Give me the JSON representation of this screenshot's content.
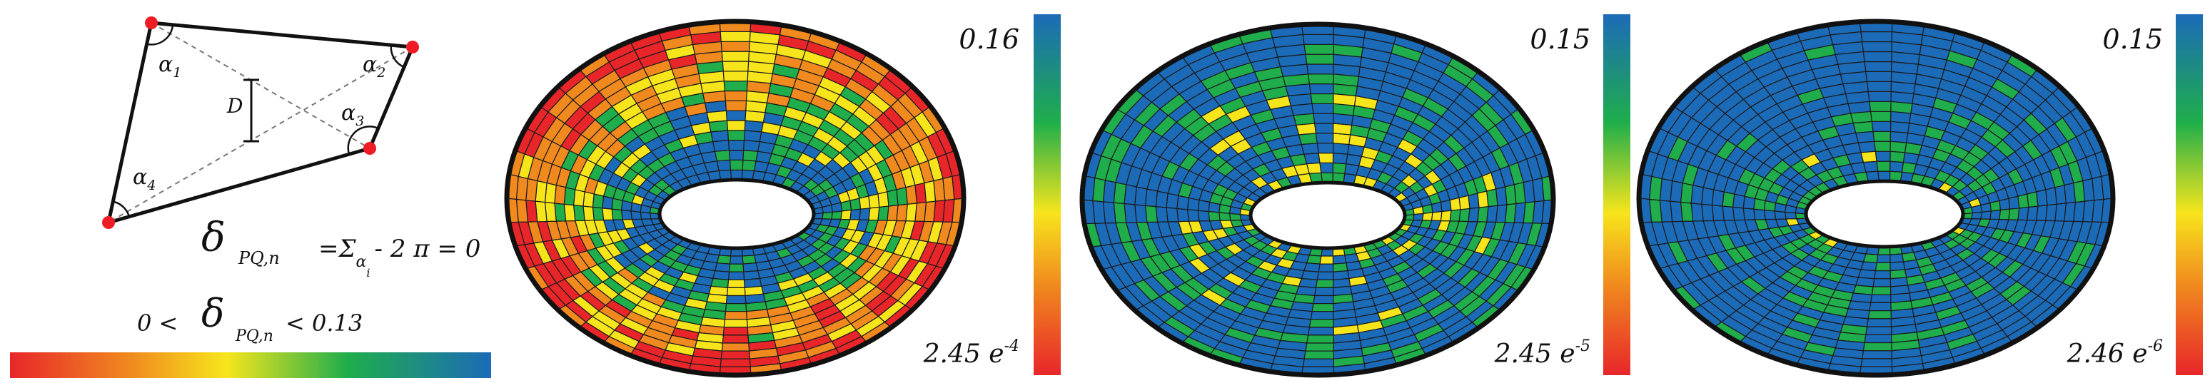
{
  "quad": {
    "angles": [
      "α",
      "α",
      "α",
      "α"
    ],
    "angle_subscripts": [
      "1",
      "2",
      "3",
      "4"
    ],
    "d_label": "D"
  },
  "formula": {
    "delta": "δ",
    "delta_subscript": "PQ,n",
    "rhs": "=Σ",
    "rhs_subscript": "α",
    "rhs_sub_sub": "i",
    "rhs_tail": "- 2 π = 0"
  },
  "range": {
    "lower": "0 <",
    "delta": "δ",
    "delta_subscript": "PQ,n",
    "upper": "< 0.13"
  },
  "colors": {
    "red": "#e8262a",
    "orange": "#f08a1e",
    "yellow": "#f7e51c",
    "green": "#1fae4b",
    "blue": "#1c6bb8",
    "vertex": "#ee1c25"
  },
  "panels": [
    {
      "max_label": "0.16",
      "min_label": "2.45 e",
      "min_exp": "-4"
    },
    {
      "max_label": "0.15",
      "min_label": "2.45 e",
      "min_exp": "-5"
    },
    {
      "max_label": "0.15",
      "min_label": "2.46 e",
      "min_exp": "-6"
    }
  ]
}
